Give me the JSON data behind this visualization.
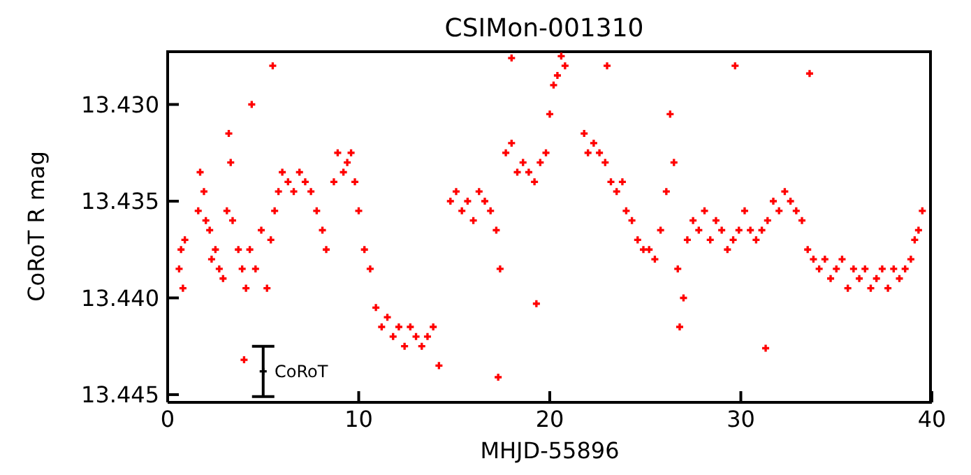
{
  "chart_data": {
    "type": "scatter",
    "title": "CSIMon-001310",
    "xlabel": "MHJD-55896",
    "ylabel": "CoRoT R mag",
    "xlim": [
      0,
      40
    ],
    "xticks": [
      0,
      10,
      20,
      30,
      40
    ],
    "ylim": [
      13.4454,
      13.4272
    ],
    "yticks": [
      {
        "value": 13.43,
        "label": "13.430"
      },
      {
        "value": 13.435,
        "label": "13.435"
      },
      {
        "value": 13.44,
        "label": "13.440"
      },
      {
        "value": 13.445,
        "label": "13.445"
      }
    ],
    "marker": "cross",
    "series": [
      {
        "color": "#ff0000",
        "x": [
          0.6,
          0.7,
          0.8,
          0.9,
          1.6,
          1.7,
          1.9,
          2.0,
          2.2,
          2.3,
          2.5,
          2.7,
          2.9,
          3.1,
          3.2,
          3.3,
          3.4,
          3.7,
          3.9,
          4.1,
          4.3,
          4.6,
          4.9,
          5.2,
          5.4,
          5.6,
          5.8,
          6.0,
          6.3,
          6.6,
          6.9,
          7.2,
          7.5,
          7.8,
          8.1,
          8.3,
          8.7,
          8.9,
          9.2,
          9.4,
          9.6,
          9.8,
          10.0,
          10.3,
          10.6,
          10.9,
          11.2,
          11.5,
          11.8,
          12.1,
          12.4,
          12.7,
          13.0,
          13.3,
          13.6,
          13.9,
          14.2,
          14.8,
          15.1,
          15.4,
          15.7,
          16.0,
          16.3,
          16.6,
          16.9,
          17.2,
          17.4,
          17.7,
          18.0,
          18.3,
          18.6,
          18.9,
          19.2,
          19.5,
          19.8,
          20.0,
          20.2,
          20.4,
          20.6,
          20.8,
          21.8,
          22.0,
          22.3,
          22.6,
          22.9,
          23.2,
          23.5,
          23.8,
          24.0,
          24.3,
          24.6,
          24.9,
          25.2,
          25.5,
          25.8,
          26.1,
          26.3,
          26.5,
          26.7,
          26.8,
          27.0,
          27.2,
          27.5,
          27.8,
          28.1,
          28.4,
          28.7,
          29.0,
          29.3,
          29.6,
          29.9,
          30.2,
          30.5,
          30.8,
          31.1,
          31.4,
          31.7,
          32.0,
          32.3,
          32.6,
          32.9,
          33.2,
          33.5,
          33.8,
          34.1,
          34.4,
          34.7,
          35.0,
          35.3,
          35.6,
          35.9,
          36.2,
          36.5,
          36.8,
          37.1,
          37.4,
          37.7,
          38.0,
          38.3,
          38.6,
          38.9,
          39.1,
          39.3,
          39.5,
          4.0,
          4.4,
          5.5,
          18.0,
          23.0,
          29.7,
          33.6,
          31.3,
          19.3,
          17.3
        ],
        "values": [
          13.4385,
          13.4375,
          13.4395,
          13.437,
          13.4355,
          13.4335,
          13.4345,
          13.436,
          13.4365,
          13.438,
          13.4375,
          13.4385,
          13.439,
          13.4355,
          13.4315,
          13.433,
          13.436,
          13.4375,
          13.4385,
          13.4395,
          13.4375,
          13.4385,
          13.4365,
          13.4395,
          13.437,
          13.4355,
          13.4345,
          13.4335,
          13.434,
          13.4345,
          13.4335,
          13.434,
          13.4345,
          13.4355,
          13.4365,
          13.4375,
          13.434,
          13.4325,
          13.4335,
          13.433,
          13.4325,
          13.434,
          13.4355,
          13.4375,
          13.4385,
          13.4405,
          13.4415,
          13.441,
          13.442,
          13.4415,
          13.4425,
          13.4415,
          13.442,
          13.4425,
          13.442,
          13.4415,
          13.4435,
          13.435,
          13.4345,
          13.4355,
          13.435,
          13.436,
          13.4345,
          13.435,
          13.4355,
          13.4365,
          13.4385,
          13.4325,
          13.432,
          13.4335,
          13.433,
          13.4335,
          13.434,
          13.433,
          13.4325,
          13.4305,
          13.429,
          13.4285,
          13.4275,
          13.428,
          13.4315,
          13.4325,
          13.432,
          13.4325,
          13.433,
          13.434,
          13.4345,
          13.434,
          13.4355,
          13.436,
          13.437,
          13.4375,
          13.4375,
          13.438,
          13.4365,
          13.4345,
          13.4305,
          13.433,
          13.4385,
          13.4415,
          13.44,
          13.437,
          13.436,
          13.4365,
          13.4355,
          13.437,
          13.436,
          13.4365,
          13.4375,
          13.437,
          13.4365,
          13.4355,
          13.4365,
          13.437,
          13.4365,
          13.436,
          13.435,
          13.4355,
          13.4345,
          13.435,
          13.4355,
          13.436,
          13.4375,
          13.438,
          13.4385,
          13.438,
          13.439,
          13.4385,
          13.438,
          13.4395,
          13.4385,
          13.439,
          13.4385,
          13.4395,
          13.439,
          13.4385,
          13.4395,
          13.4385,
          13.439,
          13.4385,
          13.438,
          13.437,
          13.4365,
          13.4355,
          13.4432,
          13.43,
          13.428,
          13.4276,
          13.428,
          13.428,
          13.4284,
          13.4426,
          13.4403,
          13.4441
        ]
      },
      {
        "name": "CoRoT",
        "color": "#000000",
        "x": [
          5
        ],
        "values": [
          13.4438
        ],
        "errors": [
          0.0013
        ]
      }
    ]
  }
}
